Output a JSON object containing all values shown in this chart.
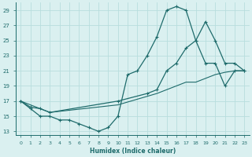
{
  "xlabel": "Humidex (Indice chaleur)",
  "bg_color": "#daf0f0",
  "grid_color": "#b8dede",
  "line_color": "#1e6b6b",
  "xlim": [
    -0.5,
    23.5
  ],
  "ylim": [
    12.5,
    30.0
  ],
  "xticks": [
    0,
    1,
    2,
    3,
    4,
    5,
    6,
    7,
    8,
    9,
    10,
    11,
    12,
    13,
    14,
    15,
    16,
    17,
    18,
    19,
    20,
    21,
    22,
    23
  ],
  "yticks": [
    13,
    15,
    17,
    19,
    21,
    23,
    25,
    27,
    29
  ],
  "curve1_x": [
    0,
    1,
    2,
    3,
    4,
    5,
    6,
    7,
    8,
    9,
    10,
    11,
    12,
    13,
    14,
    15,
    16,
    17,
    18,
    19,
    20,
    21,
    22,
    23
  ],
  "curve1_y": [
    17,
    16,
    15,
    15,
    14.5,
    14.5,
    14,
    13.5,
    13.0,
    13.5,
    15.0,
    20.5,
    21,
    23,
    25.5,
    29,
    29.5,
    29,
    25,
    22,
    22,
    19,
    21,
    21
  ],
  "curve2_x": [
    0,
    1,
    2,
    3,
    10,
    13,
    14,
    15,
    16,
    17,
    18,
    19,
    20,
    21,
    22,
    23
  ],
  "curve2_y": [
    17,
    16.2,
    16,
    15.5,
    17,
    18,
    18.5,
    21,
    22,
    24,
    25,
    27.5,
    25,
    22,
    22,
    21
  ],
  "curve3_x": [
    0,
    3,
    10,
    14,
    15,
    16,
    17,
    18,
    19,
    20,
    21,
    22,
    23
  ],
  "curve3_y": [
    17,
    15.5,
    16.5,
    18,
    18.5,
    19,
    19.5,
    19.5,
    20,
    20.5,
    20.8,
    21,
    21
  ]
}
